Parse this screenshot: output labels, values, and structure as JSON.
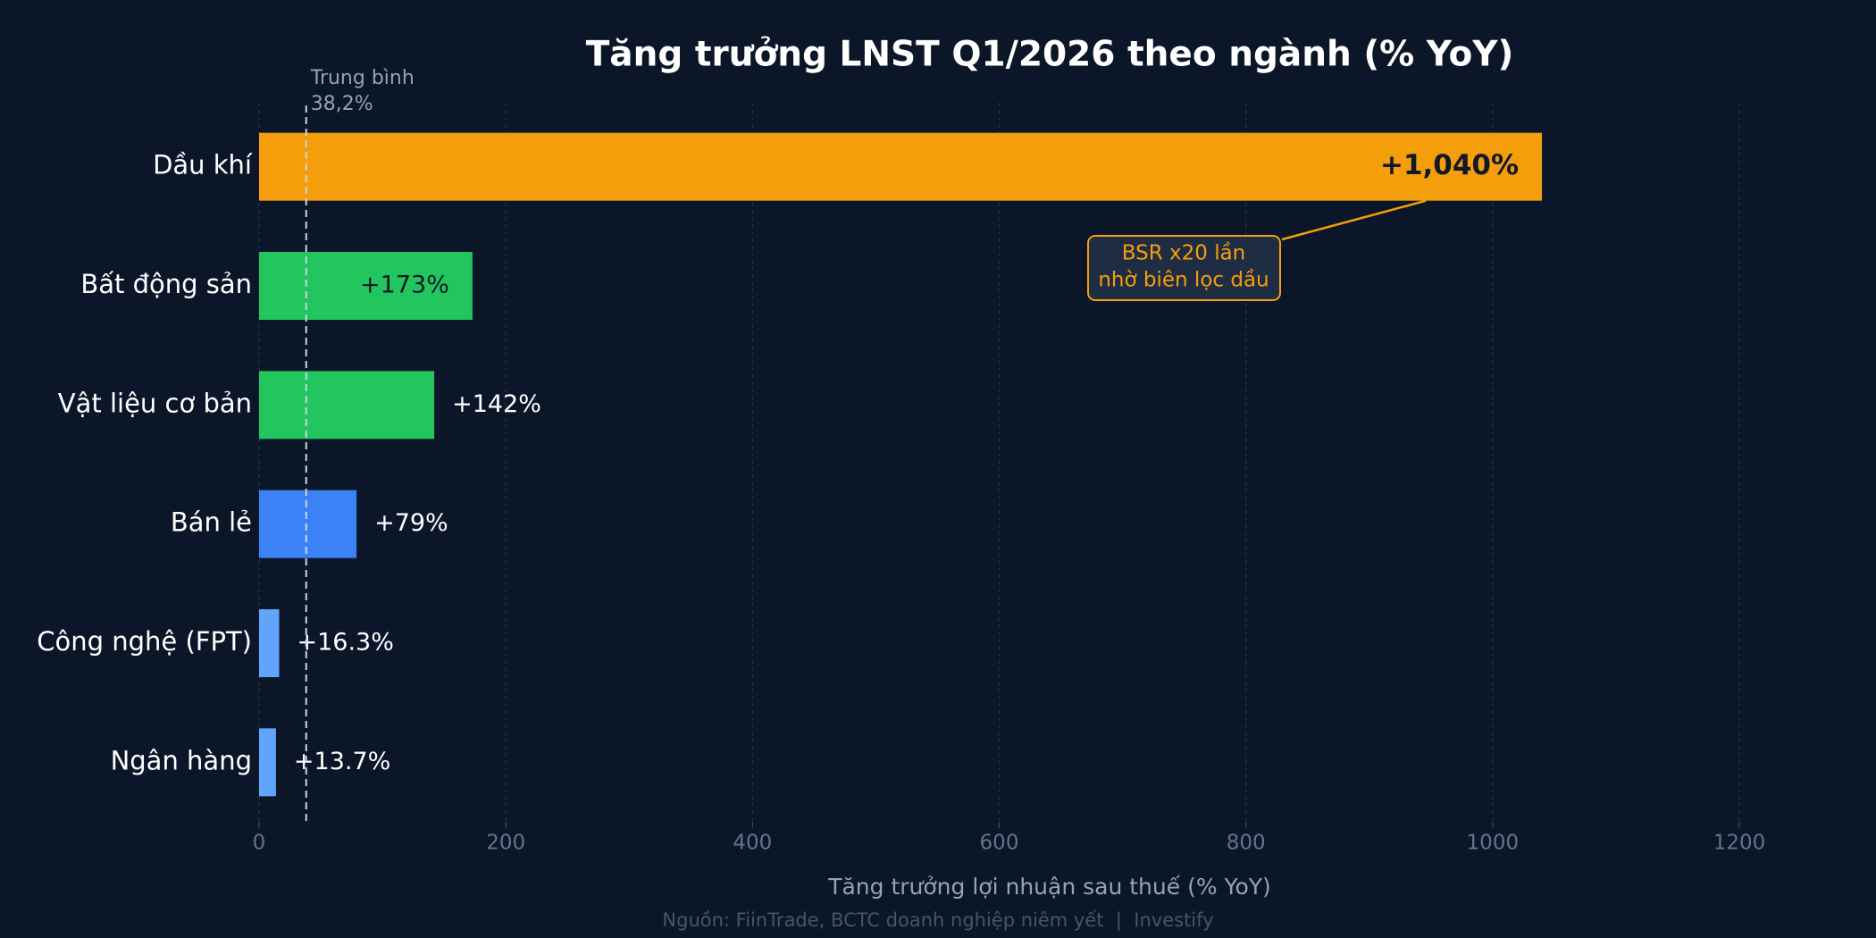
{
  "chart_data": {
    "type": "barh",
    "title": "Tăng trưởng LNST Q1/2026 theo ngành (% YoY)",
    "categories": [
      "Dầu khí",
      "Bất động sản",
      "Vật liệu cơ bản",
      "Bán lẻ",
      "Công nghệ (FPT)",
      "Ngân hàng"
    ],
    "values": [
      1040,
      173,
      142,
      79,
      16.3,
      13.7
    ],
    "value_labels": [
      "+1,040%",
      "+173%",
      "+142%",
      "+79%",
      "+16.3%",
      "+13.7%"
    ],
    "colors": [
      "#f59e0b",
      "#22c55e",
      "#22c55e",
      "#3b82f6",
      "#60a5fa",
      "#60a5fa"
    ],
    "xlim": [
      0,
      1200
    ],
    "xticks": [
      0,
      200,
      400,
      600,
      800,
      1000,
      1200
    ],
    "grid": true,
    "xlabel": "Tăng trưởng lợi nhuận sau thuế (% YoY)",
    "average": {
      "label": "Trung bình",
      "value": 38.2,
      "value_label": "38,2%"
    },
    "annotation": {
      "lines": [
        "BSR x20 lần",
        "nhờ biên lọc dầu"
      ],
      "target": 0
    },
    "source": "Nguồn: FiinTrade, BCTC doanh nghiệp niêm yết  |  Investify"
  }
}
